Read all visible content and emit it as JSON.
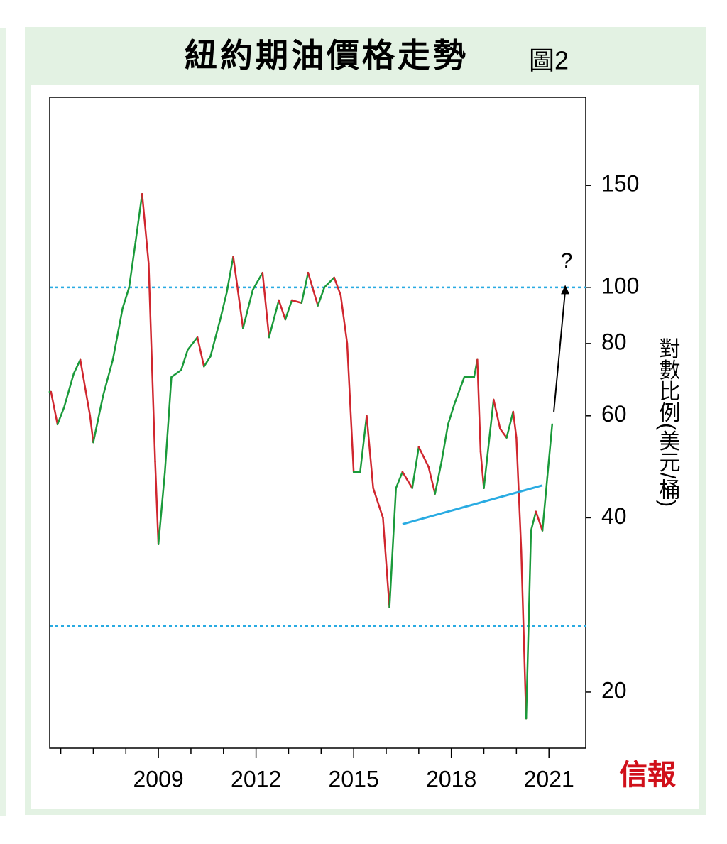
{
  "chart_data": {
    "type": "candlestick-line",
    "title": "紐約期油價格走勢",
    "figure_label": "圖2",
    "y_label": "對數比例(美元/桶)",
    "source": "信報",
    "annotation": "?",
    "log_scale": true,
    "xlim": [
      2005.66,
      2022.13
    ],
    "ylim": [
      16,
      213
    ],
    "xticks": [
      2009,
      2012,
      2015,
      2018,
      2021
    ],
    "xminor_ticks": [
      2006,
      2007,
      2008,
      2010,
      2011,
      2013,
      2014,
      2016,
      2017,
      2019,
      2020
    ],
    "yticks": [
      20,
      40,
      60,
      80,
      100,
      150
    ],
    "up_color": "#1a9a3a",
    "down_color": "#d0262e",
    "x": [
      2005.7,
      2005.9,
      2006.1,
      2006.4,
      2006.6,
      2006.9,
      2007.0,
      2007.3,
      2007.6,
      2007.9,
      2008.1,
      2008.3,
      2008.5,
      2008.7,
      2008.9,
      2009.0,
      2009.2,
      2009.4,
      2009.7,
      2009.9,
      2010.2,
      2010.4,
      2010.6,
      2010.9,
      2011.1,
      2011.3,
      2011.6,
      2011.9,
      2012.2,
      2012.4,
      2012.7,
      2012.9,
      2013.1,
      2013.4,
      2013.6,
      2013.9,
      2014.1,
      2014.4,
      2014.6,
      2014.8,
      2015.0,
      2015.2,
      2015.4,
      2015.6,
      2015.9,
      2016.1,
      2016.3,
      2016.5,
      2016.8,
      2017.0,
      2017.3,
      2017.5,
      2017.7,
      2017.9,
      2018.1,
      2018.4,
      2018.7,
      2018.8,
      2018.9,
      2019.0,
      2019.3,
      2019.5,
      2019.7,
      2019.9,
      2020.0,
      2020.15,
      2020.3,
      2020.45,
      2020.6,
      2020.8,
      2020.95,
      2021.1
    ],
    "values": [
      66,
      58,
      62,
      71,
      75,
      60,
      54,
      65,
      75,
      92,
      100,
      120,
      145,
      110,
      50,
      36,
      48,
      70,
      72,
      78,
      82,
      73,
      76,
      88,
      98,
      113,
      85,
      99,
      106,
      82,
      95,
      88,
      95,
      94,
      106,
      93,
      100,
      104,
      97,
      80,
      48,
      48,
      60,
      45,
      40,
      28,
      45,
      48,
      45,
      53,
      49,
      44,
      50,
      58,
      63,
      70,
      70,
      75,
      52,
      45,
      64,
      57,
      55,
      61,
      55,
      35,
      18,
      38,
      41,
      38,
      47,
      58
    ],
    "reference_lines": [
      100,
      26
    ],
    "reference_color": "#29abe2",
    "trendline": {
      "x": [
        2016.5,
        2020.8
      ],
      "values": [
        39,
        45.5
      ],
      "color": "#29abe2"
    },
    "arrow": {
      "x": [
        2021.15,
        2021.5
      ],
      "values": [
        61,
        101
      ]
    }
  }
}
